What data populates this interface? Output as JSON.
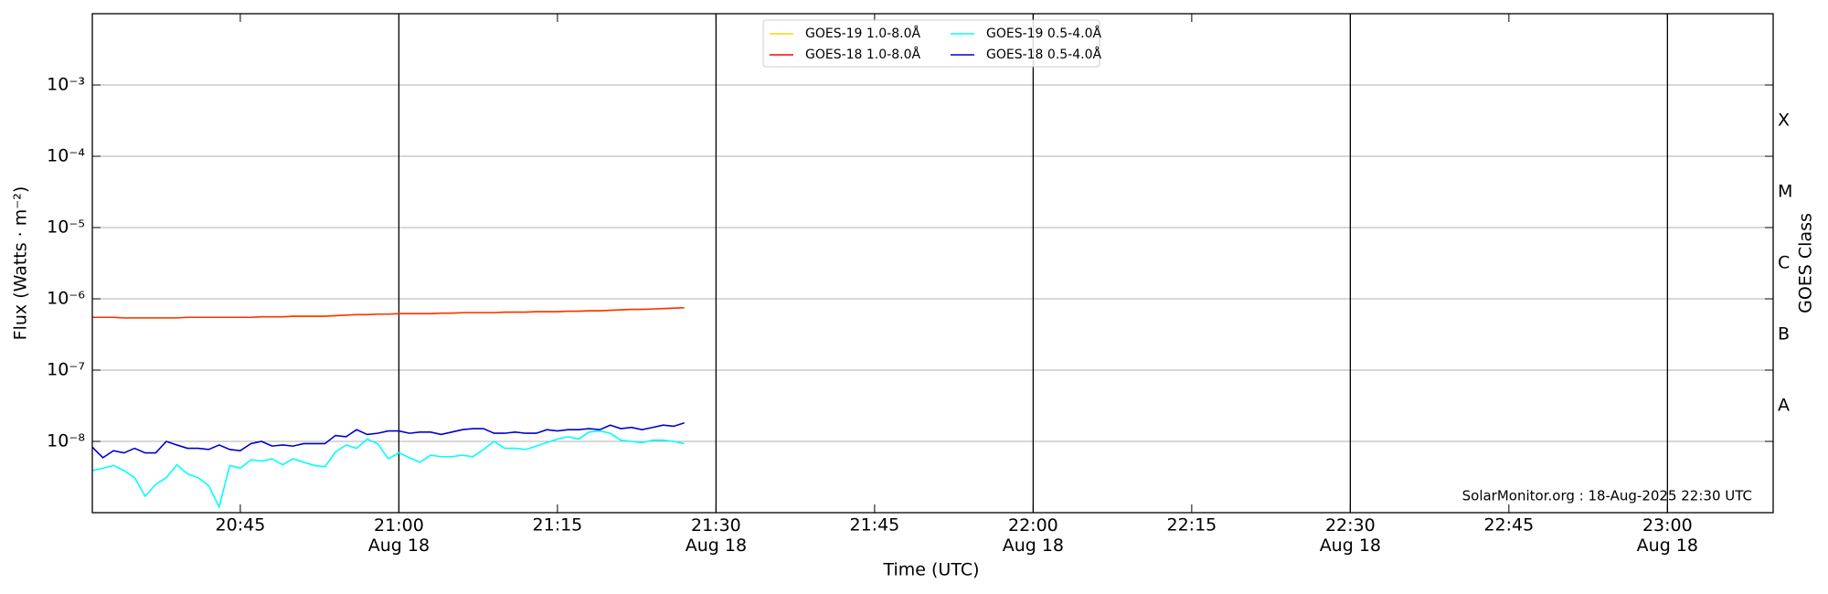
{
  "chart_data": {
    "type": "line",
    "y_label": "Flux (Watts · m⁻²)",
    "x_label": "Time (UTC)",
    "y2_label": "GOES Class",
    "annotation": "SolarMonitor.org : 18-Aug-2025 22:30 UTC",
    "log_y": true,
    "grid": true,
    "legend": "upper center",
    "xlim": [
      "20:31",
      "23:10"
    ],
    "xticks": [
      "20:45",
      {
        "value": "21:00",
        "label": "21:00\nAug 18"
      },
      "21:15",
      {
        "value": "21:30",
        "label": "21:30\nAug 18"
      },
      "21:45",
      {
        "value": "22:00",
        "label": "22:00\nAug 18"
      },
      "22:15",
      {
        "value": "22:30",
        "label": "22:30\nAug 18"
      },
      "22:45",
      {
        "value": "23:00",
        "label": "23:00\nAug 18"
      }
    ],
    "ylim": [
      1e-09,
      0.01
    ],
    "yticks": [
      {
        "value": 1e-08,
        "label": "10⁻⁸"
      },
      {
        "value": 1e-07,
        "label": "10⁻⁷"
      },
      {
        "value": 1e-06,
        "label": "10⁻⁶"
      },
      {
        "value": 1e-05,
        "label": "10⁻⁵"
      },
      {
        "value": 0.0001,
        "label": "10⁻⁴"
      },
      {
        "value": 0.001,
        "label": "10⁻³"
      }
    ],
    "class_labels": [
      {
        "value": 1e-08,
        "label": "A"
      },
      {
        "value": 1e-07,
        "label": "B"
      },
      {
        "value": 1e-06,
        "label": "C"
      },
      {
        "value": 1e-05,
        "label": "M"
      },
      {
        "value": 0.0001,
        "label": "X"
      }
    ],
    "x": [
      "20:31",
      "20:32",
      "20:33",
      "20:34",
      "20:35",
      "20:36",
      "20:37",
      "20:38",
      "20:39",
      "20:40",
      "20:41",
      "20:42",
      "20:43",
      "20:44",
      "20:45",
      "20:46",
      "20:47",
      "20:48",
      "20:49",
      "20:50",
      "20:51",
      "20:52",
      "20:53",
      "20:54",
      "20:55",
      "20:56",
      "20:57",
      "20:58",
      "20:59",
      "21:00",
      "21:01",
      "21:02",
      "21:03",
      "21:04",
      "21:05",
      "21:06",
      "21:07",
      "21:08",
      "21:09",
      "21:10",
      "21:11",
      "21:12",
      "21:13",
      "21:14",
      "21:15",
      "21:16",
      "21:17",
      "21:18",
      "21:19",
      "21:20",
      "21:21",
      "21:22",
      "21:23",
      "21:24",
      "21:25",
      "21:26",
      "21:27"
    ],
    "series": [
      {
        "name": "GOES-19 1.0-8.0Å",
        "color": "#ffd700",
        "values": [
          5.5e-07,
          5.5e-07,
          5.5e-07,
          5.4e-07,
          5.4e-07,
          5.4e-07,
          5.4e-07,
          5.4e-07,
          5.4e-07,
          5.5e-07,
          5.5e-07,
          5.5e-07,
          5.5e-07,
          5.5e-07,
          5.5e-07,
          5.5e-07,
          5.6e-07,
          5.6e-07,
          5.6e-07,
          5.7e-07,
          5.7e-07,
          5.7e-07,
          5.7e-07,
          5.8e-07,
          5.9e-07,
          6e-07,
          6e-07,
          6.1e-07,
          6.1e-07,
          6.2e-07,
          6.2e-07,
          6.2e-07,
          6.2e-07,
          6.3e-07,
          6.3e-07,
          6.4e-07,
          6.4e-07,
          6.4e-07,
          6.4e-07,
          6.5e-07,
          6.5e-07,
          6.5e-07,
          6.6e-07,
          6.6e-07,
          6.6e-07,
          6.7e-07,
          6.7e-07,
          6.8e-07,
          6.8e-07,
          6.9e-07,
          7e-07,
          7.1e-07,
          7.1e-07,
          7.2e-07,
          7.3e-07,
          7.4e-07,
          7.5e-07
        ]
      },
      {
        "name": "GOES-18 1.0-8.0Å",
        "color": "#ff0000",
        "values": [
          5.5e-07,
          5.5e-07,
          5.5e-07,
          5.4e-07,
          5.4e-07,
          5.4e-07,
          5.4e-07,
          5.4e-07,
          5.4e-07,
          5.5e-07,
          5.5e-07,
          5.5e-07,
          5.5e-07,
          5.5e-07,
          5.5e-07,
          5.5e-07,
          5.6e-07,
          5.6e-07,
          5.6e-07,
          5.7e-07,
          5.7e-07,
          5.7e-07,
          5.7e-07,
          5.8e-07,
          5.9e-07,
          6e-07,
          6e-07,
          6.1e-07,
          6.1e-07,
          6.2e-07,
          6.2e-07,
          6.2e-07,
          6.2e-07,
          6.3e-07,
          6.3e-07,
          6.4e-07,
          6.4e-07,
          6.4e-07,
          6.4e-07,
          6.5e-07,
          6.5e-07,
          6.5e-07,
          6.6e-07,
          6.6e-07,
          6.6e-07,
          6.7e-07,
          6.7e-07,
          6.8e-07,
          6.8e-07,
          6.9e-07,
          7e-07,
          7.1e-07,
          7.1e-07,
          7.2e-07,
          7.3e-07,
          7.4e-07,
          7.5e-07
        ]
      },
      {
        "name": "GOES-19 0.5-4.0Å",
        "color": "#00ffff",
        "values": [
          3.9e-09,
          4.2e-09,
          4.6e-09,
          3.9e-09,
          3.1e-09,
          1.7e-09,
          2.5e-09,
          3.1e-09,
          4.7e-09,
          3.5e-09,
          3.1e-09,
          2.4e-09,
          1.2e-09,
          4.6e-09,
          4.2e-09,
          5.5e-09,
          5.3e-09,
          5.7e-09,
          4.7e-09,
          5.7e-09,
          5.1e-09,
          4.6e-09,
          4.4e-09,
          7.1e-09,
          8.9e-09,
          8e-09,
          1.08e-08,
          9.3e-09,
          5.7e-09,
          6.9e-09,
          5.9e-09,
          5.1e-09,
          6.4e-09,
          6.1e-09,
          6.1e-09,
          6.4e-09,
          6.1e-09,
          7.7e-09,
          1e-08,
          8e-09,
          8e-09,
          7.7e-09,
          8.6e-09,
          9.6e-09,
          1.08e-08,
          1.16e-08,
          1.08e-08,
          1.35e-08,
          1.4e-08,
          1.3e-08,
          1.04e-08,
          1e-08,
          9.6e-09,
          1.04e-08,
          1.04e-08,
          1e-08,
          9.3e-09
        ]
      },
      {
        "name": "GOES-18 0.5-4.0Å",
        "color": "#0000cd",
        "values": [
          8.3e-09,
          5.9e-09,
          7.4e-09,
          6.9e-09,
          8e-09,
          6.9e-09,
          6.9e-09,
          1e-08,
          8.9e-09,
          8e-09,
          8e-09,
          7.7e-09,
          8.9e-09,
          7.7e-09,
          7.4e-09,
          9.3e-09,
          1e-08,
          8.6e-09,
          8.9e-09,
          8.6e-09,
          9.3e-09,
          9.3e-09,
          9.3e-09,
          1.21e-08,
          1.16e-08,
          1.46e-08,
          1.25e-08,
          1.3e-08,
          1.4e-08,
          1.4e-08,
          1.3e-08,
          1.35e-08,
          1.35e-08,
          1.25e-08,
          1.35e-08,
          1.46e-08,
          1.51e-08,
          1.51e-08,
          1.3e-08,
          1.3e-08,
          1.35e-08,
          1.3e-08,
          1.3e-08,
          1.46e-08,
          1.4e-08,
          1.46e-08,
          1.46e-08,
          1.51e-08,
          1.46e-08,
          1.69e-08,
          1.51e-08,
          1.57e-08,
          1.46e-08,
          1.57e-08,
          1.69e-08,
          1.63e-08,
          1.82e-08
        ]
      }
    ]
  }
}
